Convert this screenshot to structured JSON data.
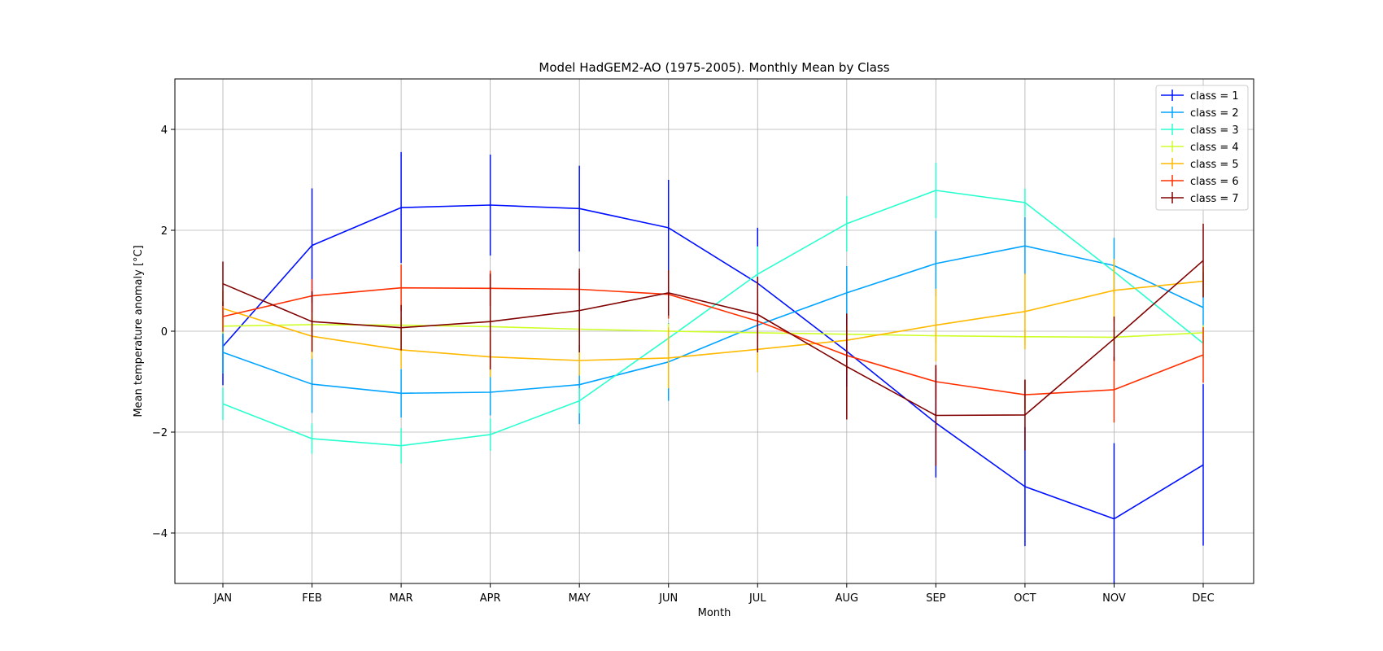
{
  "chart_data": {
    "type": "line",
    "title": "Model HadGEM2-AO (1975-2005). Monthly Mean by Class",
    "xlabel": "Month",
    "ylabel": "Mean temperature anomaly [°C]",
    "ylim": [
      -5,
      5
    ],
    "yticks": [
      -4,
      -2,
      0,
      2,
      4
    ],
    "grid": true,
    "legend_position": "top-right",
    "categories": [
      "JAN",
      "FEB",
      "MAR",
      "APR",
      "MAY",
      "JUN",
      "JUL",
      "AUG",
      "SEP",
      "OCT",
      "NOV",
      "DEC"
    ],
    "series": [
      {
        "name": "class = 1",
        "color": "#0010ff",
        "values": [
          -0.3,
          1.7,
          2.45,
          2.5,
          2.43,
          2.05,
          0.95,
          -0.4,
          -1.82,
          -3.08,
          -3.72,
          -2.65
        ],
        "errors": [
          0.77,
          1.13,
          1.1,
          1.0,
          0.85,
          0.95,
          1.1,
          0.7,
          1.08,
          1.18,
          1.5,
          1.6
        ]
      },
      {
        "name": "class = 2",
        "color": "#00a4ff",
        "values": [
          -0.42,
          -1.05,
          -1.23,
          -1.21,
          -1.06,
          -0.61,
          0.12,
          0.76,
          1.34,
          1.69,
          1.3,
          0.47
        ],
        "errors": [
          0.42,
          0.57,
          0.48,
          0.46,
          0.78,
          0.77,
          0.2,
          0.53,
          0.65,
          0.57,
          0.55,
          0.7
        ]
      },
      {
        "name": "class = 3",
        "color": "#29ffce",
        "values": [
          -1.44,
          -2.13,
          -2.27,
          -2.05,
          -1.38,
          -0.14,
          1.13,
          2.13,
          2.79,
          2.55,
          1.18,
          -0.24
        ],
        "errors": [
          0.32,
          0.3,
          0.35,
          0.32,
          0.25,
          0.22,
          0.55,
          0.55,
          0.55,
          0.28,
          0.2,
          0.3
        ]
      },
      {
        "name": "class = 4",
        "color": "#ceff29",
        "values": [
          0.1,
          0.13,
          0.12,
          0.09,
          0.04,
          0.0,
          -0.03,
          -0.06,
          -0.09,
          -0.11,
          -0.12,
          -0.03
        ],
        "errors": [
          0.15,
          0.15,
          0.15,
          0.15,
          0.15,
          0.15,
          0.15,
          0.15,
          0.15,
          0.15,
          0.15,
          0.15
        ]
      },
      {
        "name": "class = 5",
        "color": "#ffb900",
        "values": [
          0.45,
          -0.1,
          -0.37,
          -0.51,
          -0.58,
          -0.53,
          -0.36,
          -0.18,
          0.12,
          0.39,
          0.81,
          0.99
        ],
        "errors": [
          0.35,
          0.45,
          0.37,
          0.4,
          0.3,
          0.6,
          0.45,
          0.3,
          0.72,
          0.75,
          0.62,
          0.3
        ]
      },
      {
        "name": "class = 6",
        "color": "#ff3000",
        "values": [
          0.29,
          0.7,
          0.86,
          0.85,
          0.83,
          0.73,
          0.2,
          -0.48,
          -1.0,
          -1.26,
          -1.16,
          -0.47
        ],
        "errors": [
          0.3,
          0.33,
          0.46,
          0.35,
          0.33,
          0.48,
          0.45,
          0.35,
          0.33,
          0.3,
          0.65,
          0.55
        ]
      },
      {
        "name": "class = 7",
        "color": "#800000",
        "values": [
          0.94,
          0.19,
          0.07,
          0.19,
          0.41,
          0.76,
          0.33,
          -0.7,
          -1.67,
          -1.66,
          -0.15,
          1.4
        ],
        "errors": [
          0.44,
          0.6,
          0.45,
          0.95,
          0.83,
          0.45,
          0.75,
          1.05,
          1.0,
          0.7,
          0.44,
          0.73
        ]
      }
    ]
  }
}
